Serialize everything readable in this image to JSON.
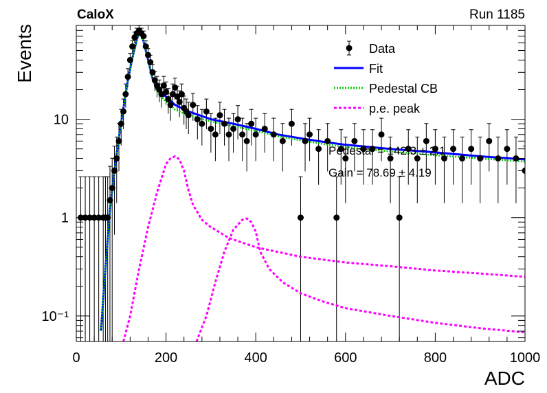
{
  "header": {
    "experiment": "CaloX",
    "run": "Run 1185"
  },
  "chart_data": {
    "type": "scatter",
    "xlabel": "ADC",
    "ylabel": "Events",
    "xlim": [
      0,
      1000
    ],
    "ylim": [
      0.055,
      90
    ],
    "yscale": "log",
    "grid": false,
    "legend_position": "top-right",
    "x_ticks": [
      0,
      200,
      400,
      600,
      800,
      1000
    ],
    "y_ticks": [
      {
        "value": 0.1,
        "label": "10⁻¹"
      },
      {
        "value": 1,
        "label": "1"
      },
      {
        "value": 10,
        "label": "10"
      }
    ],
    "legend": [
      {
        "label": "Data",
        "style": "marker",
        "color": "#000000"
      },
      {
        "label": "Fit",
        "style": "solid",
        "color": "#0000ff"
      },
      {
        "label": "Pedestal CB",
        "style": "dotted",
        "color": "#00cc00"
      },
      {
        "label": "p.e. peak",
        "style": "dashed",
        "color": "#ff00ff"
      }
    ],
    "annotations": [
      {
        "text": "Pedestal = 142.3 ± 2.1"
      },
      {
        "text": "Gain = 78.69 ± 4.19"
      }
    ],
    "series": [
      {
        "name": "Data",
        "kind": "points",
        "x": [
          10,
          20,
          30,
          40,
          50,
          60,
          65,
          70,
          75,
          80,
          85,
          90,
          95,
          100,
          105,
          110,
          115,
          120,
          125,
          130,
          135,
          140,
          145,
          150,
          155,
          160,
          165,
          170,
          175,
          180,
          185,
          190,
          195,
          200,
          205,
          210,
          215,
          220,
          225,
          230,
          235,
          240,
          245,
          250,
          260,
          270,
          280,
          290,
          300,
          310,
          320,
          330,
          340,
          350,
          360,
          370,
          380,
          390,
          400,
          420,
          440,
          460,
          480,
          500,
          510,
          520,
          540,
          560,
          580,
          590,
          600,
          620,
          640,
          660,
          680,
          700,
          720,
          740,
          760,
          780,
          800,
          820,
          840,
          860,
          880,
          900,
          920,
          940,
          960,
          980,
          1000
        ],
        "y": [
          1,
          1,
          1,
          1,
          1,
          1,
          1,
          1,
          1.5,
          2,
          3,
          4,
          6,
          9,
          12,
          18,
          27,
          40,
          55,
          68,
          75,
          80,
          75,
          70,
          55,
          45,
          38,
          30,
          25,
          22,
          20,
          18,
          22,
          19,
          16,
          14,
          18,
          21,
          17,
          15,
          18,
          13,
          12,
          11,
          14,
          10,
          9,
          12,
          8,
          7,
          11,
          9,
          7,
          8,
          10,
          7,
          6,
          9,
          7,
          8,
          7,
          6,
          9,
          1,
          6,
          7,
          5,
          6,
          1,
          5,
          4,
          6,
          5,
          5,
          7,
          4,
          1,
          5,
          4,
          6,
          5,
          4,
          5,
          4,
          5,
          4,
          6,
          4,
          5,
          4,
          3
        ],
        "color": "#000000"
      },
      {
        "name": "Fit",
        "kind": "line",
        "x": [
          55,
          65,
          75,
          85,
          95,
          105,
          115,
          125,
          135,
          140,
          145,
          150,
          160,
          170,
          180,
          200,
          220,
          250,
          300,
          350,
          400,
          450,
          500,
          550,
          600,
          700,
          800,
          900,
          1000
        ],
        "y": [
          0.07,
          0.3,
          1.2,
          3.0,
          6.5,
          13,
          25,
          42,
          65,
          75,
          73,
          62,
          40,
          26,
          20,
          17,
          14,
          12,
          10,
          9,
          8,
          7,
          6.4,
          5.9,
          5.5,
          5,
          4.6,
          4.2,
          3.9
        ],
        "color": "#0000ff"
      },
      {
        "name": "Pedestal CB",
        "kind": "line",
        "x": [
          55,
          65,
          75,
          85,
          95,
          105,
          115,
          125,
          135,
          140,
          145,
          150,
          160,
          170,
          180,
          200,
          220,
          250,
          300,
          350,
          400,
          450,
          500,
          550,
          600,
          700,
          800,
          900,
          1000
        ],
        "y": [
          0.07,
          0.3,
          1.2,
          3.0,
          6.5,
          13,
          25,
          42,
          65,
          75,
          73,
          62,
          40,
          26,
          19,
          15,
          12.5,
          11,
          9.5,
          8.5,
          7.6,
          6.7,
          6.1,
          5.6,
          5.2,
          4.7,
          4.3,
          4.0,
          3.7
        ],
        "color": "#00cc00"
      },
      {
        "name": "p.e. peak (1)",
        "kind": "line",
        "x": [
          105,
          120,
          140,
          160,
          180,
          200,
          210,
          220,
          230,
          240,
          250,
          260,
          280,
          300,
          340,
          400,
          500,
          600,
          700,
          800,
          900,
          1000
        ],
        "y": [
          0.055,
          0.1,
          0.3,
          0.8,
          1.8,
          3.5,
          4.0,
          4.2,
          3.9,
          3.0,
          1.9,
          1.35,
          0.95,
          0.8,
          0.62,
          0.5,
          0.4,
          0.35,
          0.32,
          0.29,
          0.27,
          0.25
        ],
        "color": "#ff00ff"
      },
      {
        "name": "p.e. peak (2)",
        "kind": "line",
        "x": [
          268,
          290,
          310,
          330,
          350,
          370,
          380,
          390,
          400,
          410,
          430,
          460,
          500,
          550,
          600,
          700,
          800,
          900,
          1000
        ],
        "y": [
          0.055,
          0.1,
          0.22,
          0.45,
          0.75,
          0.95,
          0.98,
          0.9,
          0.72,
          0.45,
          0.3,
          0.22,
          0.17,
          0.14,
          0.12,
          0.1,
          0.085,
          0.075,
          0.068
        ],
        "color": "#ff00ff"
      }
    ]
  }
}
